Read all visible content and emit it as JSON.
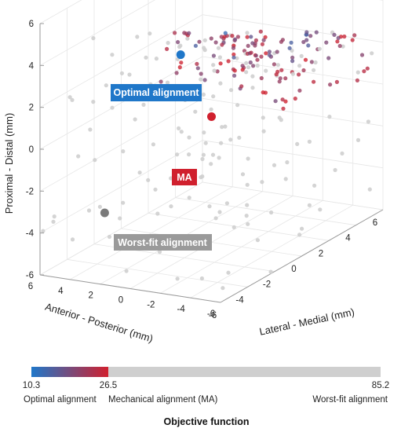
{
  "chart_data": {
    "type": "scatter",
    "dimensions": 3,
    "x_axis": {
      "label": "Lateral - Medial (mm)",
      "range": [
        -6,
        6
      ],
      "ticks": [
        "-6",
        "-4",
        "-2",
        "0",
        "2",
        "4",
        "6"
      ]
    },
    "y_axis": {
      "label": "Anterior - Posterior (mm)",
      "range": [
        -6,
        6
      ],
      "ticks": [
        "6",
        "4",
        "2",
        "0",
        "-2",
        "-4",
        "-6"
      ]
    },
    "z_axis": {
      "label": "Proximal - Distal (mm)",
      "range": [
        -6,
        6
      ],
      "ticks": [
        "6",
        "4",
        "2",
        "0",
        "-2",
        "-4",
        "-6"
      ]
    },
    "grid": true,
    "colorbar": {
      "title": "Objective function",
      "min": 10.3,
      "mid": 26.5,
      "max": 85.2,
      "tick_labels": [
        "10.3",
        "26.5",
        "85.2"
      ],
      "captions": [
        "Optimal alignment",
        "Mechanical alignment (MA)",
        "Worst-fit alignment"
      ],
      "colors": {
        "optimal": "#1f77c9",
        "ma": "#d0202e",
        "worst": "#cfcfcf"
      }
    },
    "highlights": [
      {
        "label": "Optimal alignment",
        "x": 0.5,
        "y": 2.5,
        "z": 2.5,
        "color": "#1f77c9"
      },
      {
        "label": "MA",
        "x": 0.0,
        "y": 0.0,
        "z": 0.0,
        "color": "#d0202e"
      },
      {
        "label": "Worst-fit alignment",
        "x": -4.0,
        "y": 3.5,
        "z": -3.5,
        "color": "#7a7a7a"
      }
    ],
    "cloud": {
      "point_count": 600,
      "colored_cluster": {
        "x_range": [
          -2,
          6
        ],
        "y_range": [
          -6,
          4
        ],
        "z_range": [
          0,
          6
        ],
        "count": 450
      },
      "gray_scatter": {
        "x_range": [
          -6,
          6
        ],
        "y_range": [
          -6,
          6
        ],
        "z_range": [
          -6,
          4
        ],
        "count": 150
      }
    }
  }
}
